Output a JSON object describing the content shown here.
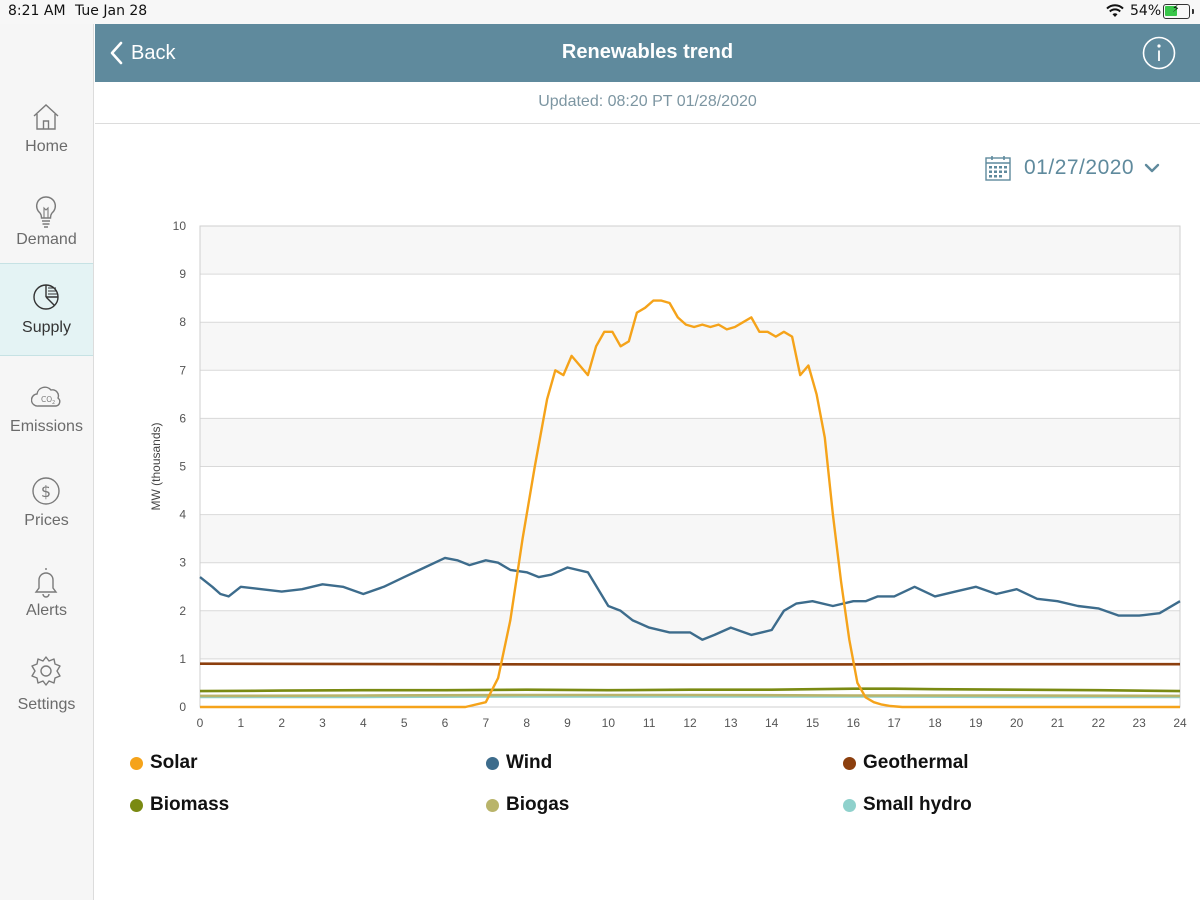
{
  "status_bar": {
    "time": "8:21 AM",
    "date": "Tue Jan 28",
    "battery_pct": "54%",
    "battery_level": 0.54
  },
  "sidebar": {
    "items": [
      {
        "label": "Home",
        "icon": "home-icon"
      },
      {
        "label": "Demand",
        "icon": "lightbulb-icon"
      },
      {
        "label": "Supply",
        "icon": "pie-chart-icon",
        "active": true
      },
      {
        "label": "Emissions",
        "icon": "co2-cloud-icon"
      },
      {
        "label": "Prices",
        "icon": "dollar-icon"
      },
      {
        "label": "Alerts",
        "icon": "bell-icon"
      },
      {
        "label": "Settings",
        "icon": "gear-icon"
      }
    ]
  },
  "header": {
    "back_label": "Back",
    "title": "Renewables trend",
    "info_icon": "info-icon",
    "color": "#5f8a9d"
  },
  "updated": "Updated: 08:20 PT 01/28/2020",
  "date_picker": {
    "value": "01/27/2020",
    "icon": "calendar-icon"
  },
  "chart_data": {
    "type": "line",
    "title": "",
    "xlabel": "",
    "ylabel": "MW (thousands)",
    "xlim": [
      0,
      24
    ],
    "ylim": [
      0,
      10
    ],
    "x_ticks": [
      0,
      1,
      2,
      3,
      4,
      5,
      6,
      7,
      8,
      9,
      10,
      11,
      12,
      13,
      14,
      15,
      16,
      17,
      18,
      19,
      20,
      21,
      22,
      23,
      24
    ],
    "y_ticks": [
      0,
      1,
      2,
      3,
      4,
      5,
      6,
      7,
      8,
      9,
      10
    ],
    "grid": true,
    "legend_position": "bottom",
    "series": [
      {
        "name": "Solar",
        "color": "#f5a31a",
        "x": [
          0,
          6.5,
          7,
          7.3,
          7.6,
          7.9,
          8.2,
          8.5,
          8.7,
          8.9,
          9.1,
          9.3,
          9.5,
          9.7,
          9.9,
          10.1,
          10.3,
          10.5,
          10.7,
          10.9,
          11.1,
          11.3,
          11.5,
          11.7,
          11.9,
          12.1,
          12.3,
          12.5,
          12.7,
          12.9,
          13.1,
          13.3,
          13.5,
          13.7,
          13.9,
          14.1,
          14.3,
          14.5,
          14.7,
          14.9,
          15.1,
          15.3,
          15.5,
          15.7,
          15.9,
          16.1,
          16.3,
          16.5,
          16.7,
          16.9,
          17.2,
          17.5,
          18,
          24
        ],
        "y": [
          0,
          0,
          0.1,
          0.6,
          1.8,
          3.5,
          5.0,
          6.4,
          7.0,
          6.9,
          7.3,
          7.1,
          6.9,
          7.5,
          7.8,
          7.8,
          7.5,
          7.6,
          8.2,
          8.3,
          8.45,
          8.45,
          8.4,
          8.1,
          7.95,
          7.9,
          7.95,
          7.9,
          7.95,
          7.85,
          7.9,
          8.0,
          8.1,
          7.8,
          7.8,
          7.7,
          7.8,
          7.7,
          6.9,
          7.1,
          6.5,
          5.6,
          4.0,
          2.6,
          1.4,
          0.5,
          0.2,
          0.1,
          0.05,
          0.02,
          0,
          0,
          0,
          0
        ]
      },
      {
        "name": "Wind",
        "color": "#3d6c8c",
        "x": [
          0,
          0.3,
          0.5,
          0.7,
          1,
          1.5,
          2,
          2.5,
          3,
          3.5,
          4,
          4.5,
          5,
          5.5,
          6,
          6.3,
          6.6,
          7,
          7.3,
          7.6,
          8,
          8.3,
          8.6,
          9,
          9.5,
          10,
          10.3,
          10.6,
          11,
          11.5,
          12,
          12.3,
          12.6,
          13,
          13.5,
          14,
          14.3,
          14.6,
          15,
          15.5,
          16,
          16.3,
          16.6,
          17,
          17.5,
          18,
          18.5,
          19,
          19.5,
          20,
          20.5,
          21,
          21.5,
          22,
          22.5,
          23,
          23.5,
          24
        ],
        "y": [
          2.7,
          2.5,
          2.35,
          2.3,
          2.5,
          2.45,
          2.4,
          2.45,
          2.55,
          2.5,
          2.35,
          2.5,
          2.7,
          2.9,
          3.1,
          3.05,
          2.95,
          3.05,
          3.0,
          2.85,
          2.8,
          2.7,
          2.75,
          2.9,
          2.8,
          2.1,
          2.0,
          1.8,
          1.65,
          1.55,
          1.55,
          1.4,
          1.5,
          1.65,
          1.5,
          1.6,
          2.0,
          2.15,
          2.2,
          2.1,
          2.2,
          2.2,
          2.3,
          2.3,
          2.5,
          2.3,
          2.4,
          2.5,
          2.35,
          2.45,
          2.25,
          2.2,
          2.1,
          2.05,
          1.9,
          1.9,
          1.95,
          2.2
        ]
      },
      {
        "name": "Geothermal",
        "color": "#8c3f0e",
        "x": [
          0,
          6,
          12,
          18,
          24
        ],
        "y": [
          0.9,
          0.89,
          0.88,
          0.89,
          0.89
        ]
      },
      {
        "name": "Biomass",
        "color": "#7a8a12",
        "x": [
          0,
          2,
          4,
          6,
          8,
          10,
          12,
          14,
          16,
          17,
          18,
          20,
          22,
          24
        ],
        "y": [
          0.33,
          0.34,
          0.35,
          0.35,
          0.36,
          0.35,
          0.36,
          0.36,
          0.38,
          0.38,
          0.37,
          0.36,
          0.35,
          0.33
        ]
      },
      {
        "name": "Biogas",
        "color": "#b9b46a",
        "x": [
          0,
          4,
          8,
          12,
          16,
          20,
          24
        ],
        "y": [
          0.23,
          0.24,
          0.25,
          0.25,
          0.24,
          0.24,
          0.23
        ]
      },
      {
        "name": "Small hydro",
        "color": "#8fd1cc",
        "x": [
          0,
          4,
          8,
          12,
          16,
          20,
          24
        ],
        "y": [
          0.21,
          0.21,
          0.22,
          0.22,
          0.22,
          0.21,
          0.21
        ]
      }
    ]
  }
}
